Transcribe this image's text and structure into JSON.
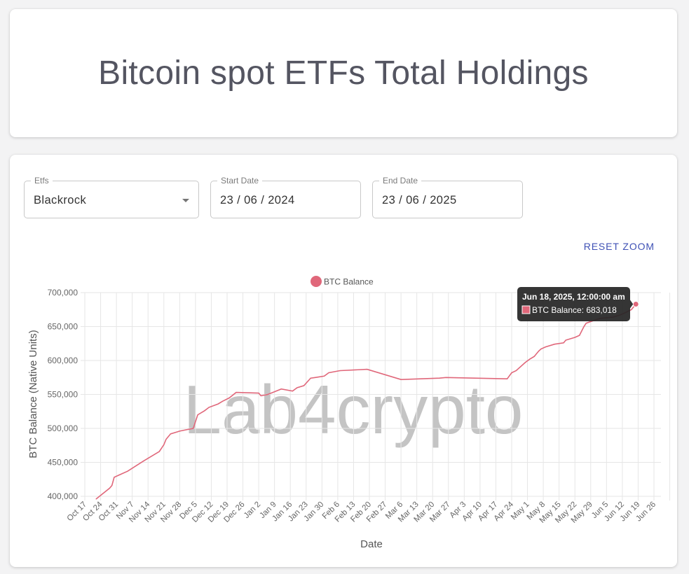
{
  "page": {
    "title": "Bitcoin spot ETFs Total Holdings"
  },
  "filters": {
    "etf": {
      "label": "Etfs",
      "value": "Blackrock"
    },
    "start_date": {
      "label": "Start Date",
      "value": "23 / 06 / 2024"
    },
    "end_date": {
      "label": "End Date",
      "value": "23 / 06 / 2025"
    }
  },
  "reset_zoom_label": "RESET ZOOM",
  "watermark": "Lab4crypto",
  "tooltip": {
    "title": "Jun 18, 2025, 12:00:00 am",
    "body": "BTC Balance: 683,018",
    "date": "2025-06-18",
    "value": 683018
  },
  "colors": {
    "series": "#e0677a",
    "tooltip_bg": "#262626",
    "grid": "#e6e6e6",
    "accent": "#3f51b5"
  },
  "chart_data": {
    "type": "line",
    "title": "",
    "xlabel": "Date",
    "ylabel": "BTC Balance (Native Units)",
    "legend": {
      "position": "top",
      "entries": [
        "BTC Balance"
      ]
    },
    "grid": true,
    "xlim": [
      "2024-10-17",
      "2025-06-26"
    ],
    "ylim": [
      400000,
      700000
    ],
    "y_ticks": [
      400000,
      450000,
      500000,
      550000,
      600000,
      650000,
      700000
    ],
    "y_tick_labels": [
      "400,000",
      "450,000",
      "500,000",
      "550,000",
      "600,000",
      "650,000",
      "700,000"
    ],
    "x_ticks": [
      "2024-10-17",
      "2024-10-24",
      "2024-10-31",
      "2024-11-07",
      "2024-11-14",
      "2024-11-21",
      "2024-11-28",
      "2024-12-05",
      "2024-12-12",
      "2024-12-19",
      "2024-12-26",
      "2025-01-02",
      "2025-01-09",
      "2025-01-16",
      "2025-01-23",
      "2025-01-30",
      "2025-02-06",
      "2025-02-13",
      "2025-02-20",
      "2025-02-27",
      "2025-03-06",
      "2025-03-13",
      "2025-03-20",
      "2025-03-27",
      "2025-04-03",
      "2025-04-10",
      "2025-04-17",
      "2025-04-24",
      "2025-05-01",
      "2025-05-08",
      "2025-05-15",
      "2025-05-22",
      "2025-05-29",
      "2025-06-05",
      "2025-06-12",
      "2025-06-19",
      "2025-06-26"
    ],
    "x_tick_labels": [
      "Oct 17",
      "Oct 24",
      "Oct 31",
      "Nov 7",
      "Nov 14",
      "Nov 21",
      "Nov 28",
      "Dec 5",
      "Dec 12",
      "Dec 19",
      "Dec 26",
      "Jan 2",
      "Jan 9",
      "Jan 16",
      "Jan 23",
      "Jan 30",
      "Feb 6",
      "Feb 13",
      "Feb 20",
      "Feb 27",
      "Mar 6",
      "Mar 13",
      "Mar 20",
      "Mar 27",
      "Apr 3",
      "Apr 10",
      "Apr 17",
      "Apr 24",
      "May 1",
      "May 8",
      "May 15",
      "May 22",
      "May 29",
      "Jun 5",
      "Jun 12",
      "Jun 19",
      "Jun 26"
    ],
    "series": [
      {
        "name": "BTC Balance",
        "color": "#e0677a",
        "points": [
          [
            "2024-10-22",
            396000
          ],
          [
            "2024-10-28",
            412000
          ],
          [
            "2024-10-29",
            416000
          ],
          [
            "2024-10-30",
            428000
          ],
          [
            "2024-11-01",
            431000
          ],
          [
            "2024-11-05",
            437000
          ],
          [
            "2024-11-12",
            452000
          ],
          [
            "2024-11-19",
            466000
          ],
          [
            "2024-11-20",
            471000
          ],
          [
            "2024-11-21",
            476000
          ],
          [
            "2024-11-22",
            484000
          ],
          [
            "2024-11-24",
            492000
          ],
          [
            "2024-11-28",
            496000
          ],
          [
            "2024-12-01",
            498000
          ],
          [
            "2024-12-04",
            500000
          ],
          [
            "2024-12-06",
            520000
          ],
          [
            "2024-12-09",
            526000
          ],
          [
            "2024-12-11",
            531000
          ],
          [
            "2024-12-15",
            536000
          ],
          [
            "2024-12-17",
            540000
          ],
          [
            "2024-12-20",
            545000
          ],
          [
            "2024-12-23",
            553000
          ],
          [
            "2025-01-02",
            552000
          ],
          [
            "2025-01-03",
            548000
          ],
          [
            "2025-01-06",
            550000
          ],
          [
            "2025-01-09",
            554000
          ],
          [
            "2025-01-12",
            558000
          ],
          [
            "2025-01-17",
            555000
          ],
          [
            "2025-01-19",
            560000
          ],
          [
            "2025-01-22",
            563000
          ],
          [
            "2025-01-25",
            574000
          ],
          [
            "2025-01-27",
            575000
          ],
          [
            "2025-01-31",
            577000
          ],
          [
            "2025-02-02",
            582000
          ],
          [
            "2025-02-07",
            585000
          ],
          [
            "2025-02-19",
            587000
          ],
          [
            "2025-03-06",
            572000
          ],
          [
            "2025-03-23",
            574000
          ],
          [
            "2025-03-26",
            575000
          ],
          [
            "2025-04-22",
            573000
          ],
          [
            "2025-04-24",
            582000
          ],
          [
            "2025-04-26",
            585000
          ],
          [
            "2025-04-30",
            597000
          ],
          [
            "2025-05-02",
            602000
          ],
          [
            "2025-05-04",
            606000
          ],
          [
            "2025-05-06",
            614000
          ],
          [
            "2025-05-07",
            617000
          ],
          [
            "2025-05-09",
            620000
          ],
          [
            "2025-05-13",
            624000
          ],
          [
            "2025-05-17",
            626000
          ],
          [
            "2025-05-18",
            630000
          ],
          [
            "2025-05-22",
            634000
          ],
          [
            "2025-05-24",
            637000
          ],
          [
            "2025-05-26",
            650000
          ],
          [
            "2025-05-27",
            655000
          ],
          [
            "2025-06-02",
            662000
          ],
          [
            "2025-06-08",
            664000
          ],
          [
            "2025-06-11",
            667000
          ],
          [
            "2025-06-13",
            670000
          ],
          [
            "2025-06-16",
            675000
          ],
          [
            "2025-06-18",
            683018
          ]
        ]
      }
    ]
  }
}
